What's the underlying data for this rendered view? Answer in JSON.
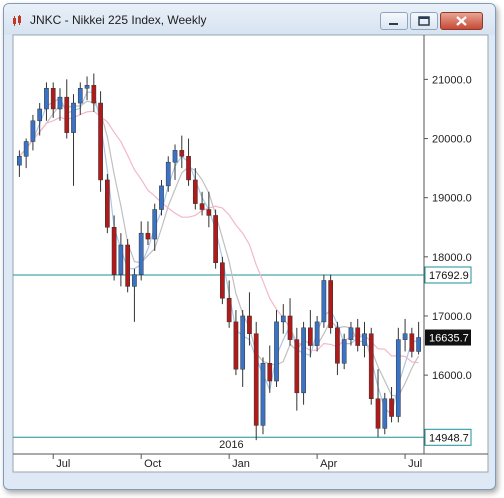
{
  "window": {
    "title": "JNKC - Nikkei 225 Index, Weekly",
    "minimize_icon": "minimize-icon",
    "maximize_icon": "maximize-icon",
    "close_icon": "close-icon"
  },
  "colors": {
    "bullish": "#3a73c6",
    "bearish": "#b01a1a",
    "level_line": "#1e8f9a",
    "ma_fast": "#a8c8ea",
    "ma_mid": "#c0c0c0",
    "ma_slow": "#f2b8c6"
  },
  "chart_data": {
    "type": "candlestick",
    "ylim": [
      14700,
      21700
    ],
    "y_ticks": [
      {
        "value": 21000,
        "label": "21000.0"
      },
      {
        "value": 20000,
        "label": "20000.0"
      },
      {
        "value": 19000,
        "label": "19000.0"
      },
      {
        "value": 18000,
        "label": "18000.0"
      },
      {
        "value": 17000,
        "label": "17000.0"
      },
      {
        "value": 16000,
        "label": "16000.0"
      }
    ],
    "x_ticks": [
      {
        "index": 5,
        "label": "Jul"
      },
      {
        "index": 18,
        "label": "Oct"
      },
      {
        "index": 31,
        "label": "Jan"
      },
      {
        "index": 44,
        "label": "Apr"
      },
      {
        "index": 57,
        "label": "Jul"
      }
    ],
    "year_label": {
      "index": 31,
      "label": "2016"
    },
    "level_lines": [
      {
        "value": 17692.9,
        "label": "17692.9"
      },
      {
        "value": 14948.7,
        "label": "14948.7"
      }
    ],
    "current_price": {
      "value": 16635.7,
      "label": "16635.7"
    },
    "ohlc": [
      [
        19550,
        19800,
        19350,
        19700
      ],
      [
        19700,
        20000,
        19500,
        19950
      ],
      [
        19950,
        20400,
        19800,
        20300
      ],
      [
        20300,
        20600,
        20050,
        20500
      ],
      [
        20500,
        20950,
        20300,
        20850
      ],
      [
        20850,
        20950,
        20350,
        20500
      ],
      [
        20500,
        20850,
        20300,
        20700
      ],
      [
        20700,
        21000,
        20000,
        20100
      ],
      [
        20100,
        20750,
        19200,
        20600
      ],
      [
        20600,
        20950,
        20400,
        20850
      ],
      [
        20850,
        21050,
        20650,
        20900
      ],
      [
        20900,
        21100,
        20450,
        20600
      ],
      [
        20600,
        20800,
        19100,
        19300
      ],
      [
        19300,
        19400,
        18400,
        18500
      ],
      [
        18500,
        18700,
        17600,
        17700
      ],
      [
        17700,
        18400,
        17500,
        18200
      ],
      [
        18200,
        18300,
        17400,
        17500
      ],
      [
        17500,
        17800,
        16900,
        17700
      ],
      [
        17700,
        18600,
        17600,
        18400
      ],
      [
        18400,
        18600,
        18200,
        18300
      ],
      [
        18300,
        18900,
        18100,
        18800
      ],
      [
        18800,
        19300,
        18700,
        19200
      ],
      [
        19200,
        19700,
        19100,
        19600
      ],
      [
        19600,
        19900,
        19300,
        19800
      ],
      [
        19800,
        20050,
        19500,
        19700
      ],
      [
        19700,
        20000,
        19200,
        19300
      ],
      [
        19300,
        19500,
        18800,
        18900
      ],
      [
        18900,
        19100,
        18700,
        18800
      ],
      [
        18800,
        19100,
        18500,
        18700
      ],
      [
        18700,
        18800,
        17800,
        17900
      ],
      [
        17900,
        18000,
        17200,
        17300
      ],
      [
        17300,
        17600,
        16800,
        16900
      ],
      [
        16900,
        17100,
        16000,
        16100
      ],
      [
        16100,
        17100,
        15800,
        17000
      ],
      [
        17000,
        17400,
        16500,
        16700
      ],
      [
        16700,
        16900,
        14900,
        15150
      ],
      [
        15150,
        16300,
        15000,
        16200
      ],
      [
        16200,
        16500,
        15700,
        15900
      ],
      [
        15900,
        17100,
        15800,
        16900
      ],
      [
        16900,
        17200,
        16700,
        17000
      ],
      [
        17000,
        17300,
        16500,
        16600
      ],
      [
        16600,
        16800,
        15400,
        15700
      ],
      [
        15700,
        16900,
        15500,
        16800
      ],
      [
        16800,
        17100,
        16300,
        16500
      ],
      [
        16500,
        17000,
        16400,
        16900
      ],
      [
        16900,
        17700,
        16800,
        17600
      ],
      [
        17600,
        17700,
        16700,
        16800
      ],
      [
        16800,
        16900,
        16000,
        16200
      ],
      [
        16200,
        16700,
        16100,
        16600
      ],
      [
        16600,
        16900,
        16500,
        16800
      ],
      [
        16800,
        16950,
        16400,
        16500
      ],
      [
        16500,
        16900,
        16300,
        16700
      ],
      [
        16700,
        16800,
        15500,
        15600
      ],
      [
        15600,
        16100,
        14950,
        15100
      ],
      [
        15100,
        15700,
        15000,
        15600
      ],
      [
        15600,
        15800,
        15200,
        15300
      ],
      [
        15300,
        16800,
        15200,
        16600
      ],
      [
        16600,
        16950,
        16400,
        16700
      ],
      [
        16700,
        16800,
        16300,
        16400
      ],
      [
        16400,
        16900,
        16350,
        16636
      ]
    ]
  }
}
